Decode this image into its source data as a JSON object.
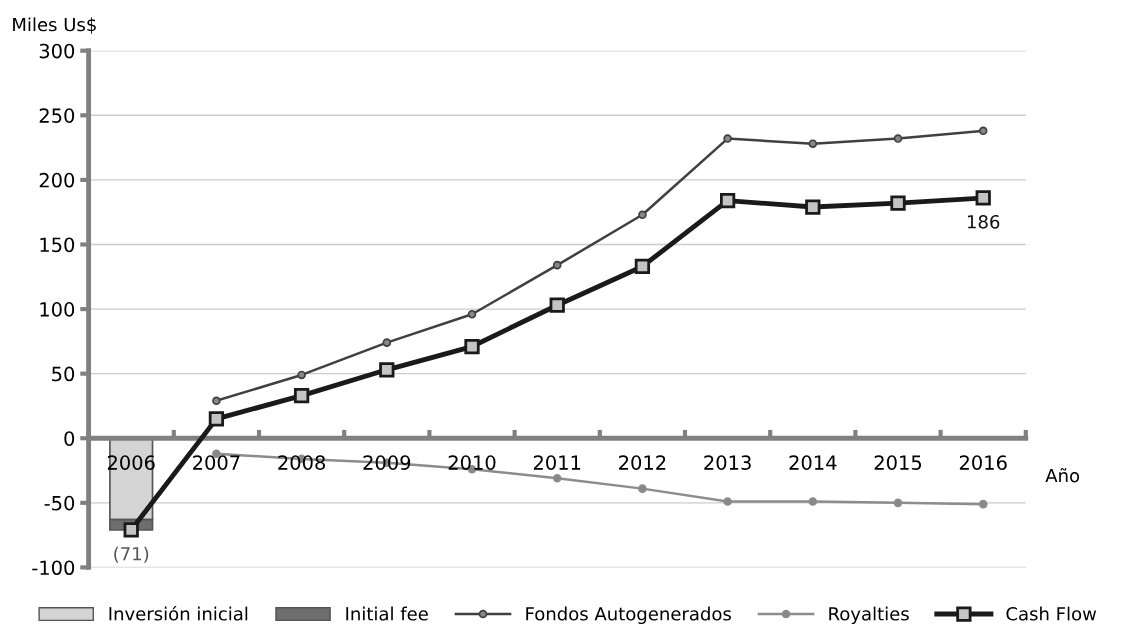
{
  "chart_data": {
    "type": "line",
    "xlabel": "Año",
    "ylabel": "Miles Us$",
    "categories": [
      "2006",
      "2007",
      "2008",
      "2009",
      "2010",
      "2011",
      "2012",
      "2013",
      "2014",
      "2015",
      "2016"
    ],
    "series": [
      {
        "name": "Inversión inicial",
        "type": "bar",
        "color": "#d4d4d4",
        "values": [
          -63,
          null,
          null,
          null,
          null,
          null,
          null,
          null,
          null,
          null,
          null
        ]
      },
      {
        "name": "Initial fee",
        "type": "bar",
        "color": "#6e6e6e",
        "values": [
          -8,
          null,
          null,
          null,
          null,
          null,
          null,
          null,
          null,
          null,
          null
        ]
      },
      {
        "name": "Fondos Autogenerados",
        "color": "#404040",
        "marker": "circle",
        "values": [
          null,
          29,
          49,
          74,
          96,
          134,
          173,
          232,
          228,
          232,
          238
        ]
      },
      {
        "name": "Royalties",
        "color": "#8c8c8c",
        "marker": "circle",
        "values": [
          null,
          -12,
          -16,
          -19,
          -24,
          -31,
          -39,
          -49,
          -49,
          -50,
          -51
        ]
      },
      {
        "name": "Cash Flow",
        "color": "#1a1a1a",
        "marker": "square",
        "values": [
          -71,
          15,
          33,
          53,
          71,
          103,
          133,
          184,
          179,
          182,
          186
        ],
        "value_labels": [
          "(71)",
          null,
          null,
          null,
          null,
          null,
          null,
          null,
          null,
          null,
          "186"
        ]
      }
    ],
    "stacked": true,
    "ylim": [
      -100,
      300
    ],
    "yticks": [
      -100,
      -50,
      0,
      50,
      100,
      150,
      200,
      250,
      300
    ],
    "grid": "y",
    "legend": "bottom"
  }
}
